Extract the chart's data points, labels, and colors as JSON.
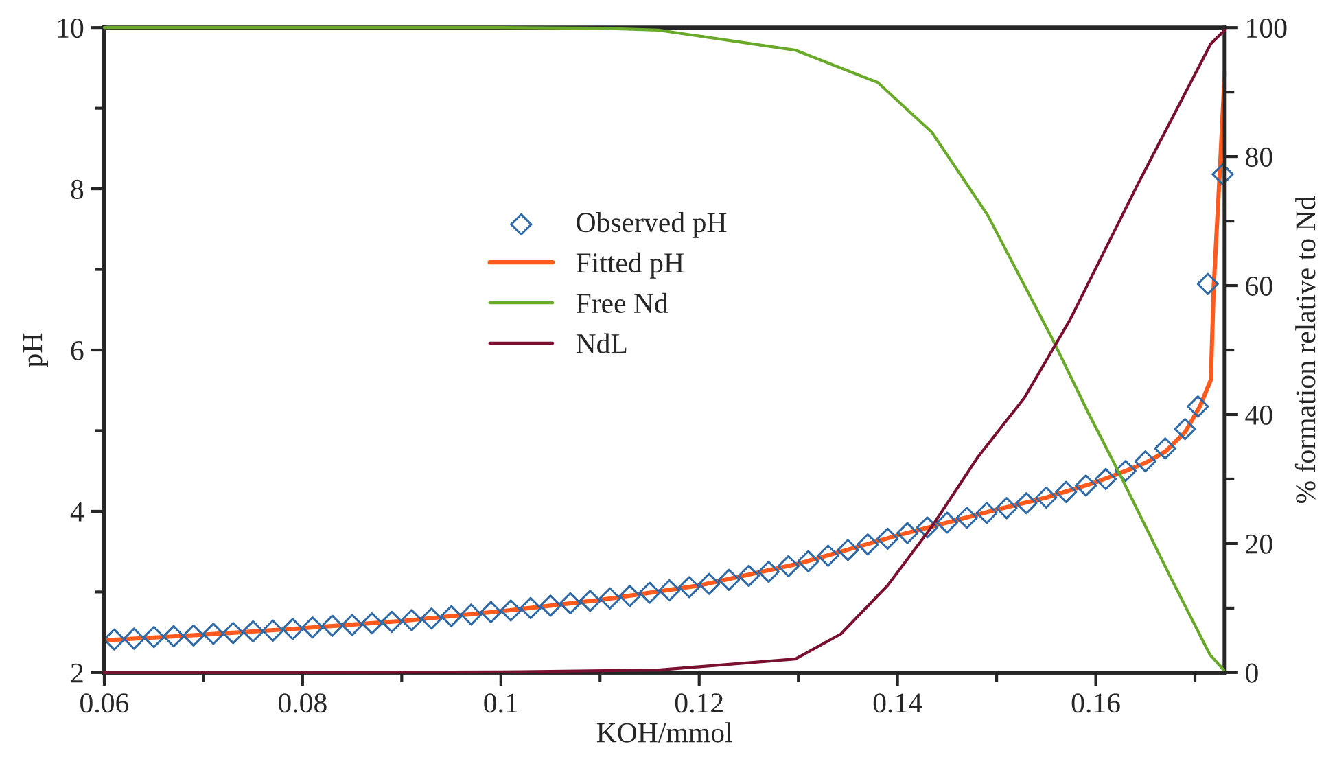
{
  "chart_data": {
    "type": "line",
    "xlabel": "KOH/mmol",
    "ylabel": "pH",
    "y2label": "% formation relative to Nd",
    "xlim": [
      0.06,
      0.173
    ],
    "xticks": [
      0.06,
      0.08,
      0.1,
      0.12,
      0.14,
      0.16
    ],
    "ylim": [
      2,
      10
    ],
    "yticks": [
      2,
      4,
      6,
      8,
      10
    ],
    "y2lim": [
      0,
      100
    ],
    "y2ticks": [
      0,
      20,
      40,
      60,
      80,
      100
    ],
    "legend": "center",
    "grid": false,
    "series": [
      {
        "name": "Observed pH",
        "type": "scatter",
        "marker": "diamond",
        "color": "#2e6aa8",
        "x": [
          0.061,
          0.063,
          0.065,
          0.067,
          0.069,
          0.071,
          0.073,
          0.075,
          0.077,
          0.079,
          0.081,
          0.083,
          0.085,
          0.087,
          0.089,
          0.091,
          0.093,
          0.095,
          0.097,
          0.099,
          0.101,
          0.103,
          0.105,
          0.107,
          0.109,
          0.111,
          0.113,
          0.115,
          0.117,
          0.119,
          0.121,
          0.123,
          0.125,
          0.127,
          0.129,
          0.131,
          0.133,
          0.135,
          0.137,
          0.139,
          0.141,
          0.143,
          0.145,
          0.147,
          0.149,
          0.151,
          0.153,
          0.155,
          0.157,
          0.159,
          0.161,
          0.163,
          0.165,
          0.167,
          0.169,
          0.1703,
          0.1713,
          0.1728
        ],
        "values": [
          2.41,
          2.42,
          2.44,
          2.45,
          2.46,
          2.48,
          2.49,
          2.51,
          2.52,
          2.54,
          2.56,
          2.58,
          2.59,
          2.61,
          2.63,
          2.65,
          2.67,
          2.7,
          2.72,
          2.75,
          2.77,
          2.8,
          2.83,
          2.86,
          2.89,
          2.92,
          2.95,
          2.99,
          3.02,
          3.06,
          3.1,
          3.15,
          3.2,
          3.25,
          3.32,
          3.38,
          3.45,
          3.52,
          3.59,
          3.66,
          3.73,
          3.8,
          3.86,
          3.92,
          3.98,
          4.04,
          4.1,
          4.17,
          4.24,
          4.32,
          4.4,
          4.5,
          4.62,
          4.78,
          5.02,
          5.3,
          6.82,
          8.18
        ]
      },
      {
        "name": "Fitted pH",
        "color": "#ff5a1e",
        "x": [
          0.06,
          0.07,
          0.08,
          0.09,
          0.1,
          0.11,
          0.12,
          0.13,
          0.14,
          0.15,
          0.155,
          0.16,
          0.163,
          0.165,
          0.167,
          0.169,
          0.1705,
          0.1716,
          0.1719,
          0.1725,
          0.173
        ],
        "values": [
          2.4,
          2.47,
          2.55,
          2.64,
          2.76,
          2.9,
          3.08,
          3.35,
          3.7,
          4.02,
          4.17,
          4.36,
          4.5,
          4.6,
          4.74,
          4.98,
          5.3,
          5.63,
          6.8,
          8.2,
          9.44
        ]
      },
      {
        "name": "Free Nd",
        "axis": "y2",
        "color": "#6aaa2a",
        "x": [
          0.06,
          0.08,
          0.1,
          0.11,
          0.1159,
          0.1297,
          0.138,
          0.1435,
          0.1491,
          0.1556,
          0.1592,
          0.1625,
          0.1675,
          0.1715,
          0.1729
        ],
        "values": [
          100,
          100,
          100,
          99.9,
          99.6,
          96.5,
          91.5,
          83.7,
          70.9,
          51.8,
          40.4,
          30.5,
          14.9,
          2.8,
          0.4
        ]
      },
      {
        "name": "NdL",
        "axis": "y2",
        "color": "#7a1030",
        "x": [
          0.06,
          0.08,
          0.1,
          0.1159,
          0.1297,
          0.1343,
          0.139,
          0.1435,
          0.1481,
          0.1528,
          0.1574,
          0.1643,
          0.1716,
          0.173
        ],
        "values": [
          0,
          0,
          0.1,
          0.4,
          2.1,
          6.0,
          13.5,
          22.7,
          33.4,
          42.6,
          54.7,
          75.9,
          97.5,
          99.6
        ]
      }
    ]
  }
}
